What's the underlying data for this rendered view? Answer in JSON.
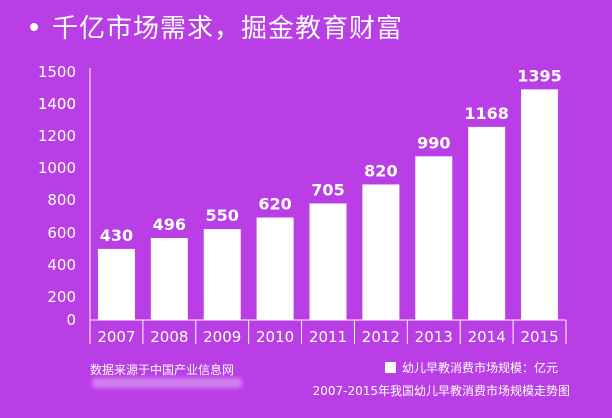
{
  "header": {
    "title": "千亿市场需求，掘金教育财富"
  },
  "footer": {
    "source": "数据来源于中国产业信息网",
    "legend_label": "幼儿早教消费市场规模：亿元",
    "subtitle": "2007-2015年我国幼儿早教消费市场规模走势图"
  },
  "colors": {
    "background": "#b93ee6",
    "bar": "#ffffff",
    "text": "#ffffff"
  },
  "chart_data": {
    "type": "bar",
    "categories": [
      "2007",
      "2008",
      "2009",
      "2010",
      "2011",
      "2012",
      "2013",
      "2014",
      "2015"
    ],
    "series": [
      {
        "name": "幼儿早教消费市场规模：亿元",
        "values": [
          430,
          496,
          550,
          620,
          705,
          820,
          990,
          1168,
          1395
        ]
      }
    ],
    "data_labels": [
      "430",
      "496",
      "550",
      "620",
      "705",
      "820",
      "990",
      "1168",
      "1395"
    ],
    "y_tick_labels": [
      "0",
      "200",
      "400",
      "600",
      "800",
      "1000",
      "1200",
      "1400",
      "1400",
      "1500"
    ],
    "ylim": [
      0,
      1500
    ],
    "legend_position": "bottom-right",
    "grid": false
  }
}
